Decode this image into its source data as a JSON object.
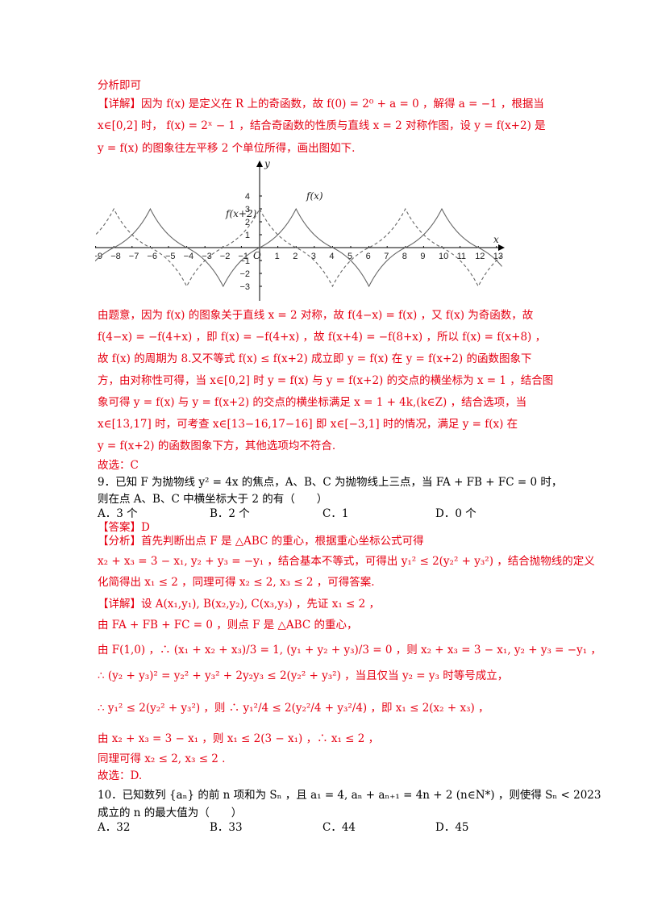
{
  "lines": {
    "l01": "分析即可",
    "l02": "【详解】因为 f(x) 是定义在 R 上的奇函数，故 f(0) = 2⁰ + a = 0 ，解得 a = −1 ，根据当",
    "l03": "x∈[0,2] 时， f(x) = 2ˣ − 1 ，结合奇函数的性质与直线 x = 2 对称作图，设 y = f(x+2) 是",
    "l04": "y = f(x) 的图象往左平移 2 个单位所得，画出图如下.",
    "l05": "由题意，因为 f(x) 的图象关于直线 x = 2 对称，故 f(4−x) = f(x) ，又 f(x) 为奇函数，故",
    "l06": "f(4−x) = −f(4+x) ，即 f(x) = −f(4+x) ，故 f(x+4) = −f(8+x) ，所以 f(x) = f(x+8) ，",
    "l07": "故 f(x) 的周期为 8.又不等式 f(x) ≤ f(x+2) 成立即 y = f(x) 在 y = f(x+2) 的函数图象下",
    "l08": "方，由对称性可得，当 x∈[0,2] 时 y = f(x) 与 y = f(x+2) 的交点的横坐标为 x = 1 ，结合图",
    "l09": "象可得 y = f(x) 与 y = f(x+2) 的交点的横坐标满足 x = 1 + 4k,(k∈Z) ，结合选项，当",
    "l10": "x∈[13,17] 时，可考查 x∈[13−16,17−16] 即 x∈[−3,1] 时的情况，满足 y = f(x) 在",
    "l11": "y = f(x+2) 的函数图象下方，其他选项均不符合.",
    "l12": "故选：C",
    "l13": "9．已知 F 为抛物线 y² = 4x 的焦点，A、B、C 为抛物线上三点，当 FA + FB + FC = 0 时，",
    "l14": "则在点 A、B、C 中横坐标大于 2 的有（　　）",
    "l16": "【答案】D",
    "l17": "【分析】首先判断出点 F 是 △ABC 的重心，根据重心坐标公式可得",
    "l18": "x₂ + x₃ = 3 − x₁, y₂ + y₃ = −y₁ ，结合基本不等式，可得出 y₁² ≤ 2(y₂² + y₃²) ，结合抛物线的定义",
    "l19": "化简得出 x₁ ≤ 2 ，同理可得 x₂ ≤ 2, x₃ ≤ 2 ，可得答案.",
    "l20": "【详解】设 A(x₁,y₁), B(x₂,y₂), C(x₃,y₃) ，先证 x₁ ≤ 2 ，",
    "l21": "由 FA + FB + FC = 0 ，则点 F 是 △ABC 的重心，",
    "l22": "由 F(1,0) ，∴ (x₁ + x₂ + x₃)/3 = 1, (y₁ + y₂ + y₃)/3 = 0 ，则 x₂ + x₃ = 3 − x₁, y₂ + y₃ = −y₁ ，",
    "l23": "∴ (y₂ + y₃)² = y₂² + y₃² + 2y₂y₃ ≤ 2(y₂² + y₃²) ，当且仅当 y₂ = y₃ 时等号成立，",
    "l24": "∴ y₁² ≤ 2(y₂² + y₃²) ，则 ∴ y₁²/4 ≤ 2(y₂²/4 + y₃²/4) ，即 x₁ ≤ 2(x₂ + x₃) ，",
    "l25": "由 x₂ + x₃ = 3 − x₁ ，则 x₁ ≤ 2(3 − x₁) ，∴ x₁ ≤ 2 ，",
    "l26": "同理可得 x₂ ≤ 2, x₃ ≤ 2 .",
    "l27": "故选：D.",
    "l28": "10．已知数列 {aₙ} 的前 n 项和为 Sₙ ，且 a₁ = 4, aₙ + aₙ₊₁ = 4n + 2 (n∈N*) ，则使得 Sₙ < 2023",
    "l29": "成立的 n 的最大值为（　　）"
  },
  "q9_options": [
    "A．3 个",
    "B．2 个",
    "C．1",
    "D．0 个"
  ],
  "q10_options": [
    "A．32",
    "B．33",
    "C．44",
    "D．45"
  ],
  "graph": {
    "x_ticks": [
      "−9",
      "−8",
      "−7",
      "−6",
      "−5",
      "−4",
      "−3",
      "−2",
      "−1",
      "1",
      "2",
      "3",
      "4",
      "5",
      "6",
      "7",
      "8",
      "9",
      "10",
      "11",
      "12",
      "13"
    ],
    "y_ticks": [
      "4",
      "3",
      "2",
      "1",
      "−1",
      "−2",
      "−3"
    ],
    "origin": "O",
    "x_axis": "x",
    "y_axis": "y",
    "label_f": "f(x)",
    "label_f_shift": "f(x+2)"
  },
  "colors": {
    "answer_red": "#e60012",
    "curve": "#555555"
  }
}
